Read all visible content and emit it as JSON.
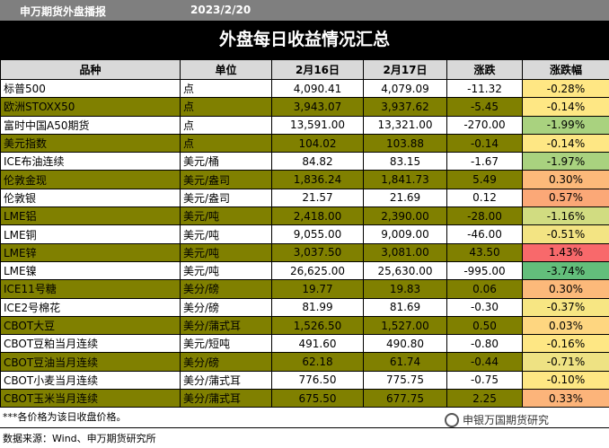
{
  "header": {
    "org": "申万期货外盘播报",
    "date": "2023/2/20",
    "title": "外盘每日收益情况汇总"
  },
  "table": {
    "columns": [
      "品种",
      "单位",
      "2月16日",
      "2月17日",
      "涨跌",
      "涨跌幅"
    ],
    "rows": [
      {
        "name": "标普500",
        "unit": "点",
        "d16": "4,090.41",
        "d17": "4,079.09",
        "chg": "-11.32",
        "pct": "-0.28%",
        "color": "#ffe784",
        "band": "plain"
      },
      {
        "name": "欧洲STOXX50",
        "unit": "点",
        "d16": "3,943.07",
        "d17": "3,937.62",
        "chg": "-5.45",
        "pct": "-0.14%",
        "color": "#fee784",
        "band": "olive"
      },
      {
        "name": "富时中国A50期货",
        "unit": "点",
        "d16": "13,591.00",
        "d17": "13,321.00",
        "chg": "-270.00",
        "pct": "-1.99%",
        "color": "#a9d27f",
        "band": "plain"
      },
      {
        "name": "美元指数",
        "unit": "点",
        "d16": "104.02",
        "d17": "103.88",
        "chg": "-0.14",
        "pct": "-0.14%",
        "color": "#fee784",
        "band": "olive"
      },
      {
        "name": "ICE布油连续",
        "unit": "美元/桶",
        "d16": "84.82",
        "d17": "83.15",
        "chg": "-1.67",
        "pct": "-1.97%",
        "color": "#a9d27f",
        "band": "plain"
      },
      {
        "name": "伦敦金现",
        "unit": "美元/盎司",
        "d16": "1,836.24",
        "d17": "1,841.73",
        "chg": "5.49",
        "pct": "0.30%",
        "color": "#fcb97a",
        "band": "olive"
      },
      {
        "name": "伦敦银",
        "unit": "美元/盎司",
        "d16": "21.57",
        "d17": "21.69",
        "chg": "0.12",
        "pct": "0.57%",
        "color": "#fba877",
        "band": "plain"
      },
      {
        "name": "LME铝",
        "unit": "美元/吨",
        "d16": "2,418.00",
        "d17": "2,390.00",
        "chg": "-28.00",
        "pct": "-1.16%",
        "color": "#d1dc81",
        "band": "olive"
      },
      {
        "name": "LME铜",
        "unit": "美元/吨",
        "d16": "9,055.00",
        "d17": "9,009.00",
        "chg": "-46.00",
        "pct": "-0.51%",
        "color": "#f3e483",
        "band": "plain"
      },
      {
        "name": "LME锌",
        "unit": "美元/吨",
        "d16": "3,037.50",
        "d17": "3,081.00",
        "chg": "43.50",
        "pct": "1.43%",
        "color": "#f8696b",
        "band": "olive"
      },
      {
        "name": "LME镍",
        "unit": "美元/吨",
        "d16": "26,625.00",
        "d17": "25,630.00",
        "chg": "-995.00",
        "pct": "-3.74%",
        "color": "#63be7b",
        "band": "plain"
      },
      {
        "name": "ICE11号糖",
        "unit": "美分/磅",
        "d16": "19.77",
        "d17": "19.83",
        "chg": "0.06",
        "pct": "0.30%",
        "color": "#fcb97a",
        "band": "olive"
      },
      {
        "name": "ICE2号棉花",
        "unit": "美分/磅",
        "d16": "81.99",
        "d17": "81.69",
        "chg": "-0.30",
        "pct": "-0.37%",
        "color": "#f7e683",
        "band": "plain"
      },
      {
        "name": "CBOT大豆",
        "unit": "美分/蒲式耳",
        "d16": "1,526.50",
        "d17": "1,527.00",
        "chg": "0.50",
        "pct": "0.03%",
        "color": "#fed680",
        "band": "olive"
      },
      {
        "name": "CBOT豆粕当月连续",
        "unit": "美元/短吨",
        "d16": "491.60",
        "d17": "490.80",
        "chg": "-0.80",
        "pct": "-0.16%",
        "color": "#fee784",
        "band": "plain"
      },
      {
        "name": "CBOT豆油当月连续",
        "unit": "美分/磅",
        "d16": "62.18",
        "d17": "61.74",
        "chg": "-0.44",
        "pct": "-0.71%",
        "color": "#eee283",
        "band": "olive"
      },
      {
        "name": "CBOT小麦当月连续",
        "unit": "美分/蒲式耳",
        "d16": "776.50",
        "d17": "775.75",
        "chg": "-0.75",
        "pct": "-0.10%",
        "color": "#fee784",
        "band": "plain"
      },
      {
        "name": "CBOT玉米当月连续",
        "unit": "美分/蒲式耳",
        "d16": "675.50",
        "d17": "677.75",
        "chg": "2.25",
        "pct": "0.33%",
        "color": "#fcb47a",
        "band": "olive"
      }
    ]
  },
  "footer": {
    "note": "***各价格为该日收盘价格。",
    "source": "数据来源：Wind、申万期货研究所",
    "brand": "申银万国期货研究"
  }
}
